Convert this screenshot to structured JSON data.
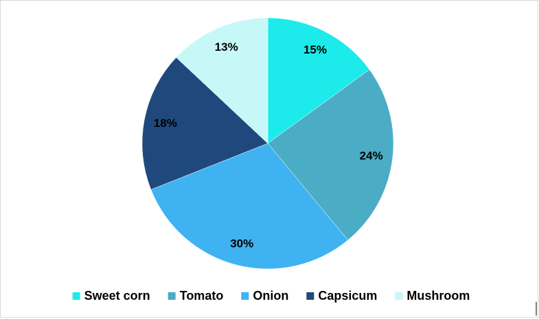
{
  "chart_data": {
    "type": "pie",
    "categories": [
      "Sweet corn",
      "Tomato",
      "Onion",
      "Capsicum",
      "Mushroom"
    ],
    "values": [
      15,
      24,
      30,
      18,
      13
    ],
    "value_labels": [
      "15%",
      "24%",
      "30%",
      "18%",
      "13%"
    ],
    "colors": [
      "#1deaea",
      "#4bacc6",
      "#3fb3f1",
      "#1f497d",
      "#c6f8f8"
    ],
    "legend": "bottom"
  }
}
